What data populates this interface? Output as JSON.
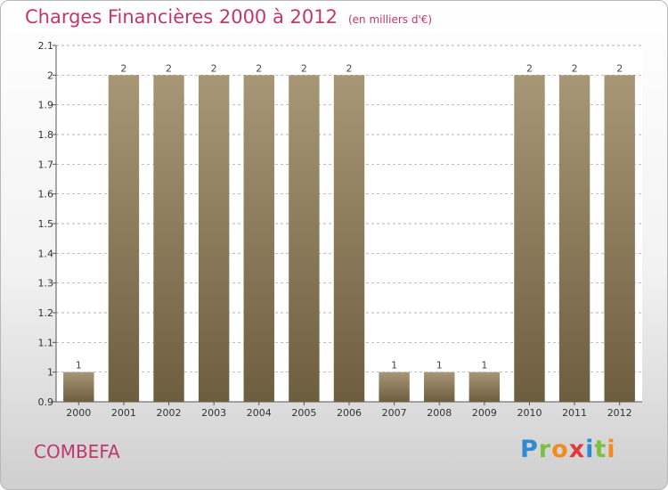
{
  "header": {
    "title": "Charges Financières 2000 à 2012",
    "subtitle": "(en milliers d'€)"
  },
  "footer": {
    "place": "COMBEFA",
    "brand": [
      "P",
      "r",
      "o",
      "x",
      "i",
      "t",
      "i"
    ],
    "brand_colors": [
      "#2e8bd1",
      "#7bc043",
      "#f28c1e",
      "#e03a3e",
      "#2e8bd1",
      "#7bc043",
      "#f28c1e"
    ]
  },
  "colors": {
    "bar_top": "#a79776",
    "bar_bottom": "#6e5e40",
    "grid": "#999999",
    "axis": "#555555"
  },
  "chart_data": {
    "type": "bar",
    "categories": [
      "2000",
      "2001",
      "2002",
      "2003",
      "2004",
      "2005",
      "2006",
      "2007",
      "2008",
      "2009",
      "2010",
      "2011",
      "2012"
    ],
    "values": [
      1,
      2,
      2,
      2,
      2,
      2,
      2,
      1,
      1,
      1,
      2,
      2,
      2
    ],
    "data_labels": [
      "1",
      "2",
      "2",
      "2",
      "2",
      "2",
      "2",
      "1",
      "1",
      "1",
      "2",
      "2",
      "2"
    ],
    "yticks": [
      0.9,
      1,
      1.1,
      1.2,
      1.3,
      1.4,
      1.5,
      1.6,
      1.7,
      1.8,
      1.9,
      2,
      2.1
    ],
    "ytick_labels": [
      "0.9",
      "1",
      "1.1",
      "1.2",
      "1.3",
      "1.4",
      "1.5",
      "1.6",
      "1.7",
      "1.8",
      "1.9",
      "2",
      "2.1"
    ],
    "ylim": [
      0.9,
      2.1
    ],
    "grid": "horizontal dashed",
    "title": "Charges Financières 2000 à 2012",
    "xlabel": "",
    "ylabel": ""
  }
}
